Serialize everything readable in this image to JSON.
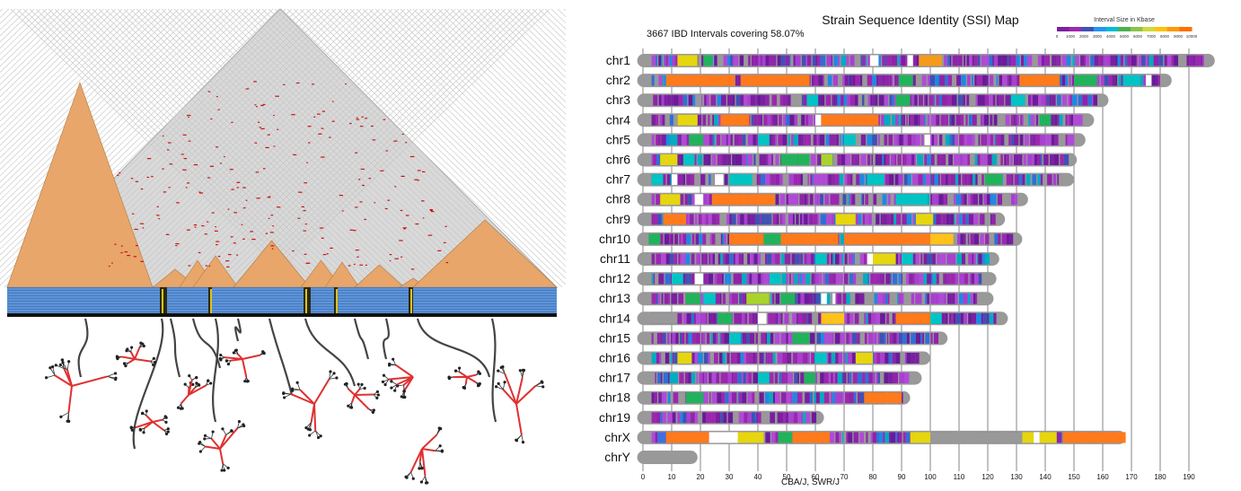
{
  "ssi_map": {
    "title": "Strain Sequence Identity (SSI) Map",
    "subtitle": "3667 IBD Intervals covering 58.07%",
    "legend": {
      "title": "Interval Size in Kbase",
      "ticks": [
        "0",
        "1000",
        "2000",
        "3000",
        "4000",
        "5000",
        "6000",
        "7000",
        "8000",
        "9000",
        "10000"
      ],
      "colors": [
        "#7b1fa2",
        "#9c27b0",
        "#3f51b5",
        "#2196f3",
        "#00bcd4",
        "#4caf50",
        "#8bc34a",
        "#cddc39",
        "#ffc107",
        "#ff9800",
        "#ff6f00"
      ]
    },
    "xlabel": "CBA/J, SWR/J",
    "gray_color": "#999999"
  },
  "chart_data": {
    "type": "bar",
    "title": "Strain Sequence Identity (SSI) Map",
    "subtitle": "3667 IBD Intervals covering 58.07%",
    "xlabel": "CBA/J, SWR/J",
    "xlim": [
      0,
      195
    ],
    "xticks": [
      0,
      10,
      20,
      30,
      40,
      50,
      60,
      70,
      80,
      90,
      100,
      110,
      120,
      130,
      140,
      150,
      160,
      170,
      180,
      190
    ],
    "categories": [
      "chr1",
      "chr2",
      "chr3",
      "chr4",
      "chr5",
      "chr6",
      "chr7",
      "chr8",
      "chr9",
      "chr10",
      "chr11",
      "chr12",
      "chr13",
      "chr14",
      "chr15",
      "chr16",
      "chr17",
      "chr18",
      "chr19",
      "chrX",
      "chrY"
    ],
    "values": [
      197,
      182,
      160,
      155,
      152,
      149,
      148,
      132,
      124,
      130,
      122,
      121,
      120,
      125,
      104,
      98,
      95,
      91,
      61,
      166,
      17
    ],
    "highlights": [
      {
        "chr": "chr1",
        "segments": [
          [
            12,
            19,
            "#e6d60e"
          ],
          [
            21,
            24,
            "#21b35b"
          ],
          [
            96,
            104,
            "#f59a1c"
          ]
        ],
        "gaps": [
          [
            79,
            82
          ],
          [
            92,
            94
          ]
        ]
      },
      {
        "chr": "chr2",
        "segments": [
          [
            8,
            32,
            "#ff7a1a"
          ],
          [
            34,
            58,
            "#ff7a1a"
          ],
          [
            131,
            145,
            "#ff7a1a"
          ],
          [
            150,
            158,
            "#21b35b"
          ],
          [
            89,
            94,
            "#21b35b"
          ],
          [
            167,
            173,
            "#00c4c4"
          ]
        ],
        "gaps": [
          [
            175,
            177
          ]
        ]
      },
      {
        "chr": "chr3",
        "segments": [
          [
            88,
            93,
            "#21b35b"
          ],
          [
            57,
            61,
            "#00c4c4"
          ],
          [
            128,
            133,
            "#00c4c4"
          ]
        ],
        "gaps": []
      },
      {
        "chr": "chr4",
        "segments": [
          [
            12,
            19,
            "#e6d60e"
          ],
          [
            27,
            37,
            "#ff7a1a"
          ],
          [
            62,
            82,
            "#ff7a1a"
          ],
          [
            138,
            142,
            "#21b35b"
          ]
        ],
        "gaps": [
          [
            60,
            62
          ]
        ]
      },
      {
        "chr": "chr5",
        "segments": [
          [
            16,
            21,
            "#21b35b"
          ],
          [
            40,
            44,
            "#00c4c4"
          ],
          [
            70,
            74,
            "#00c4c4"
          ]
        ],
        "gaps": [
          [
            98,
            100
          ]
        ]
      },
      {
        "chr": "chr6",
        "segments": [
          [
            6,
            12,
            "#e6d60e"
          ],
          [
            14,
            18,
            "#00c4c4"
          ],
          [
            48,
            54,
            "#21b35b"
          ],
          [
            62,
            66,
            "#a8d42a"
          ],
          [
            54,
            58,
            "#21b35b"
          ]
        ],
        "gaps": []
      },
      {
        "chr": "chr7",
        "segments": [
          [
            3,
            7,
            "#00c4c4"
          ],
          [
            30,
            38,
            "#00c4c4"
          ],
          [
            119,
            125,
            "#21b35b"
          ],
          [
            78,
            84,
            "#00c4c4"
          ]
        ],
        "gaps": [
          [
            10,
            12
          ],
          [
            25,
            28
          ]
        ]
      },
      {
        "chr": "chr8",
        "segments": [
          [
            6,
            13,
            "#e6d60e"
          ],
          [
            24,
            37,
            "#ff7a1a"
          ],
          [
            37,
            46,
            "#ff7a1a"
          ],
          [
            88,
            99,
            "#00c4c4"
          ]
        ],
        "gaps": [
          [
            18,
            21
          ]
        ]
      },
      {
        "chr": "chr9",
        "segments": [
          [
            7,
            15,
            "#ff7a1a"
          ],
          [
            67,
            74,
            "#e6d60e"
          ],
          [
            95,
            101,
            "#e6d60e"
          ]
        ],
        "gaps": []
      },
      {
        "chr": "chr10",
        "segments": [
          [
            2,
            6,
            "#21b35b"
          ],
          [
            30,
            42,
            "#ff7a1a"
          ],
          [
            42,
            48,
            "#21b35b"
          ],
          [
            48,
            68,
            "#ff7a1a"
          ],
          [
            70,
            100,
            "#ff7a1a"
          ],
          [
            100,
            108,
            "#ffc21a"
          ]
        ],
        "gaps": []
      },
      {
        "chr": "chr11",
        "segments": [
          [
            60,
            64,
            "#00c4c4"
          ],
          [
            80,
            88,
            "#e6d60e"
          ],
          [
            90,
            94,
            "#00c4c4"
          ]
        ],
        "gaps": [
          [
            78,
            80
          ]
        ]
      },
      {
        "chr": "chr12",
        "segments": [
          [
            10,
            14,
            "#00c4c4"
          ],
          [
            44,
            48,
            "#00c4c4"
          ]
        ],
        "gaps": [
          [
            18,
            21
          ]
        ]
      },
      {
        "chr": "chr13",
        "segments": [
          [
            15,
            20,
            "#21b35b"
          ],
          [
            36,
            44,
            "#a8d42a"
          ],
          [
            48,
            53,
            "#21b35b"
          ],
          [
            21,
            25,
            "#00c4c4"
          ]
        ],
        "gaps": [
          [
            62,
            64
          ],
          [
            66,
            67
          ]
        ]
      },
      {
        "chr": "chr14",
        "segments": [
          [
            2,
            12,
            "#999999"
          ],
          [
            26,
            31,
            "#21b35b"
          ],
          [
            62,
            70,
            "#ffc21a"
          ],
          [
            88,
            100,
            "#ff7a1a"
          ],
          [
            100,
            104,
            "#00c4c4"
          ]
        ],
        "gaps": [
          [
            40,
            43
          ]
        ]
      },
      {
        "chr": "chr15",
        "segments": [
          [
            52,
            58,
            "#21b35b"
          ],
          [
            30,
            34,
            "#00c4c4"
          ]
        ],
        "gaps": []
      },
      {
        "chr": "chr16",
        "segments": [
          [
            12,
            17,
            "#e6d60e"
          ],
          [
            74,
            80,
            "#e6d60e"
          ],
          [
            60,
            64,
            "#00c4c4"
          ]
        ],
        "gaps": []
      },
      {
        "chr": "chr17",
        "segments": [
          [
            40,
            44,
            "#00c4c4"
          ],
          [
            56,
            60,
            "#21b35b"
          ]
        ],
        "gaps": []
      },
      {
        "chr": "chr18",
        "segments": [
          [
            15,
            21,
            "#21b35b"
          ],
          [
            77,
            90,
            "#ff7a1a"
          ]
        ],
        "gaps": []
      },
      {
        "chr": "chr19",
        "segments": [],
        "gaps": []
      },
      {
        "chr": "chrX",
        "segments": [
          [
            5,
            8,
            "#3f6fe0"
          ],
          [
            8,
            23,
            "#ff7a1a"
          ],
          [
            33,
            42,
            "#e6d60e"
          ],
          [
            47,
            52,
            "#21b35b"
          ],
          [
            52,
            65,
            "#ff7a1a"
          ],
          [
            93,
            100,
            "#e6d60e"
          ],
          [
            132,
            144,
            "#e6d60e"
          ],
          [
            146,
            168,
            "#ff7a1a"
          ],
          [
            100,
            132,
            "#999999"
          ]
        ],
        "gaps": [
          [
            23,
            33
          ],
          [
            136,
            138
          ]
        ]
      },
      {
        "chr": "chrY",
        "segments": [
          [
            0,
            17,
            "#999999"
          ]
        ],
        "gaps": []
      }
    ]
  },
  "ld_panel": {
    "triangle_fill": "#d9d9d9",
    "block_fill": "#e8a66a",
    "mark_color": "#cc1111",
    "snp_band_color": "#3d7cc9"
  }
}
